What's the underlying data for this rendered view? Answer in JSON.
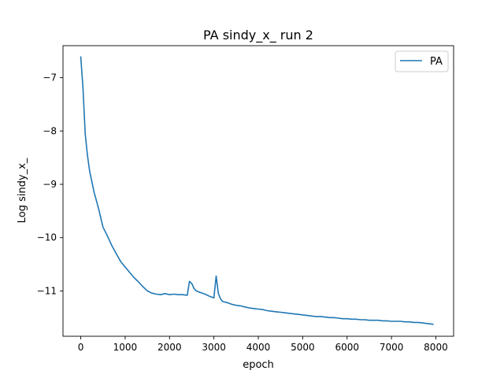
{
  "chart_data": {
    "type": "line",
    "title": "PA sindy_x_ run 2",
    "xlabel": "epoch",
    "ylabel": "Log sindy_x_",
    "xlim": [
      -400,
      8400
    ],
    "ylim": [
      -11.85,
      -6.4
    ],
    "xticks": [
      0,
      1000,
      2000,
      3000,
      4000,
      5000,
      6000,
      7000,
      8000
    ],
    "xtick_labels": [
      "0",
      "1000",
      "2000",
      "3000",
      "4000",
      "5000",
      "6000",
      "7000",
      "8000"
    ],
    "yticks": [
      -7,
      -8,
      -9,
      -10,
      -11
    ],
    "ytick_labels": [
      "−7",
      "−8",
      "−9",
      "−10",
      "−11"
    ],
    "grid": false,
    "legend": {
      "position": "top-right",
      "entries": [
        "PA"
      ]
    },
    "series": [
      {
        "name": "PA",
        "color": "#1f77b4",
        "x": [
          0,
          50,
          100,
          150,
          200,
          300,
          400,
          500,
          600,
          700,
          800,
          900,
          1000,
          1100,
          1200,
          1300,
          1400,
          1500,
          1600,
          1700,
          1800,
          1900,
          2000,
          2100,
          2200,
          2300,
          2400,
          2450,
          2500,
          2550,
          2600,
          2700,
          2800,
          2900,
          3000,
          3050,
          3100,
          3150,
          3200,
          3300,
          3400,
          3500,
          3600,
          3700,
          3800,
          3900,
          4000,
          4100,
          4200,
          4300,
          4400,
          4500,
          4600,
          4700,
          4800,
          4900,
          5000,
          5100,
          5200,
          5300,
          5400,
          5500,
          5600,
          5700,
          5800,
          5900,
          6000,
          6100,
          6200,
          6300,
          6400,
          6500,
          6600,
          6700,
          6800,
          6900,
          7000,
          7100,
          7200,
          7300,
          7400,
          7500,
          7600,
          7700,
          7800,
          7900,
          7950
        ],
        "y": [
          -6.6,
          -7.2,
          -8.05,
          -8.45,
          -8.75,
          -9.15,
          -9.45,
          -9.8,
          -9.97,
          -10.15,
          -10.3,
          -10.45,
          -10.55,
          -10.65,
          -10.75,
          -10.83,
          -10.92,
          -11.0,
          -11.04,
          -11.06,
          -11.07,
          -11.05,
          -11.07,
          -11.06,
          -11.07,
          -11.07,
          -11.08,
          -10.82,
          -10.86,
          -10.95,
          -11.0,
          -11.03,
          -11.06,
          -11.1,
          -11.13,
          -10.72,
          -11.05,
          -11.15,
          -11.2,
          -11.22,
          -11.25,
          -11.27,
          -11.28,
          -11.3,
          -11.32,
          -11.33,
          -11.34,
          -11.35,
          -11.37,
          -11.38,
          -11.39,
          -11.4,
          -11.41,
          -11.42,
          -11.43,
          -11.44,
          -11.45,
          -11.46,
          -11.47,
          -11.48,
          -11.48,
          -11.49,
          -11.5,
          -11.5,
          -11.51,
          -11.52,
          -11.52,
          -11.53,
          -11.53,
          -11.54,
          -11.54,
          -11.55,
          -11.55,
          -11.55,
          -11.56,
          -11.56,
          -11.57,
          -11.57,
          -11.57,
          -11.58,
          -11.58,
          -11.59,
          -11.59,
          -11.6,
          -11.61,
          -11.62,
          -11.63
        ]
      }
    ]
  }
}
